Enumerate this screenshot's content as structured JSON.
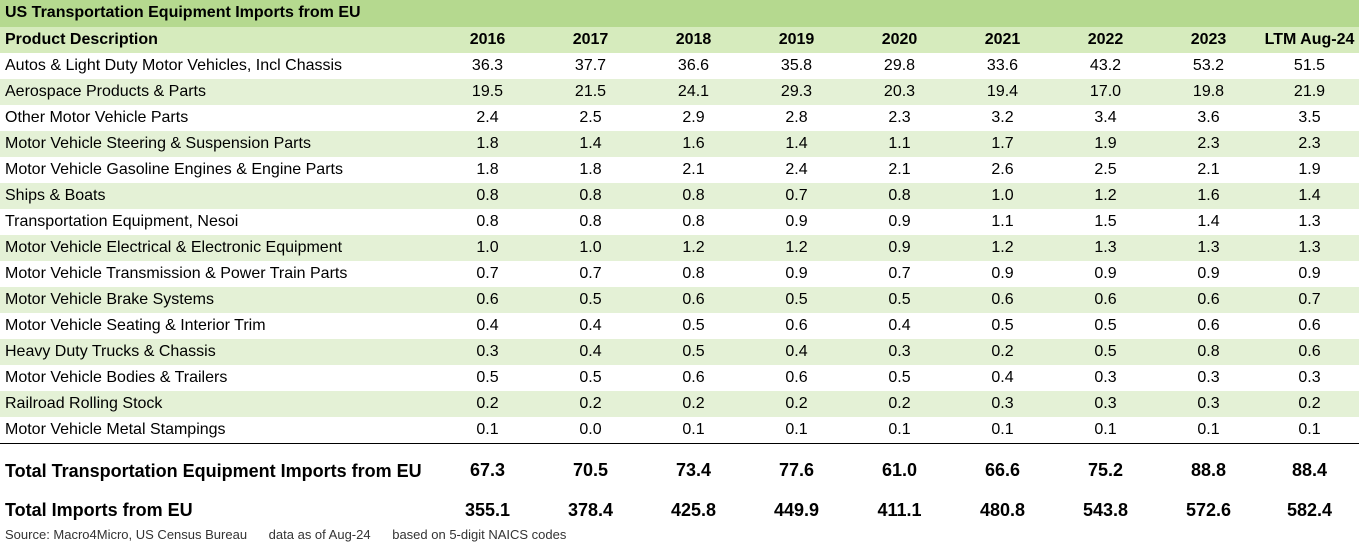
{
  "title": "US Transportation Equipment Imports from EU",
  "columns": [
    "Product Description",
    "2016",
    "2017",
    "2018",
    "2019",
    "2020",
    "2021",
    "2022",
    "2023",
    "LTM Aug-24"
  ],
  "rows": [
    [
      "Autos & Light Duty Motor Vehicles, Incl Chassis",
      "36.3",
      "37.7",
      "36.6",
      "35.8",
      "29.8",
      "33.6",
      "43.2",
      "53.2",
      "51.5"
    ],
    [
      "Aerospace Products & Parts",
      "19.5",
      "21.5",
      "24.1",
      "29.3",
      "20.3",
      "19.4",
      "17.0",
      "19.8",
      "21.9"
    ],
    [
      "Other Motor Vehicle Parts",
      "2.4",
      "2.5",
      "2.9",
      "2.8",
      "2.3",
      "3.2",
      "3.4",
      "3.6",
      "3.5"
    ],
    [
      "Motor Vehicle Steering & Suspension Parts",
      "1.8",
      "1.4",
      "1.6",
      "1.4",
      "1.1",
      "1.7",
      "1.9",
      "2.3",
      "2.3"
    ],
    [
      "Motor Vehicle Gasoline Engines & Engine Parts",
      "1.8",
      "1.8",
      "2.1",
      "2.4",
      "2.1",
      "2.6",
      "2.5",
      "2.1",
      "1.9"
    ],
    [
      "Ships & Boats",
      "0.8",
      "0.8",
      "0.8",
      "0.7",
      "0.8",
      "1.0",
      "1.2",
      "1.6",
      "1.4"
    ],
    [
      "Transportation Equipment, Nesoi",
      "0.8",
      "0.8",
      "0.8",
      "0.9",
      "0.9",
      "1.1",
      "1.5",
      "1.4",
      "1.3"
    ],
    [
      "Motor Vehicle Electrical & Electronic Equipment",
      "1.0",
      "1.0",
      "1.2",
      "1.2",
      "0.9",
      "1.2",
      "1.3",
      "1.3",
      "1.3"
    ],
    [
      "Motor Vehicle Transmission & Power Train Parts",
      "0.7",
      "0.7",
      "0.8",
      "0.9",
      "0.7",
      "0.9",
      "0.9",
      "0.9",
      "0.9"
    ],
    [
      "Motor Vehicle Brake Systems",
      "0.6",
      "0.5",
      "0.6",
      "0.5",
      "0.5",
      "0.6",
      "0.6",
      "0.6",
      "0.7"
    ],
    [
      "Motor Vehicle Seating & Interior Trim",
      "0.4",
      "0.4",
      "0.5",
      "0.6",
      "0.4",
      "0.5",
      "0.5",
      "0.6",
      "0.6"
    ],
    [
      "Heavy Duty Trucks & Chassis",
      "0.3",
      "0.4",
      "0.5",
      "0.4",
      "0.3",
      "0.2",
      "0.5",
      "0.8",
      "0.6"
    ],
    [
      "Motor Vehicle Bodies & Trailers",
      "0.5",
      "0.5",
      "0.6",
      "0.6",
      "0.5",
      "0.4",
      "0.3",
      "0.3",
      "0.3"
    ],
    [
      "Railroad Rolling Stock",
      "0.2",
      "0.2",
      "0.2",
      "0.2",
      "0.2",
      "0.3",
      "0.3",
      "0.3",
      "0.2"
    ],
    [
      "Motor Vehicle Metal Stampings",
      "0.1",
      "0.0",
      "0.1",
      "0.1",
      "0.1",
      "0.1",
      "0.1",
      "0.1",
      "0.1"
    ]
  ],
  "totals": [
    [
      "Total Transportation Equipment Imports from EU",
      "67.3",
      "70.5",
      "73.4",
      "77.6",
      "61.0",
      "66.6",
      "75.2",
      "88.8",
      "88.4"
    ],
    [
      "Total Imports from EU",
      "355.1",
      "378.4",
      "425.8",
      "449.9",
      "411.1",
      "480.8",
      "543.8",
      "572.6",
      "582.4"
    ]
  ],
  "footer": {
    "source": "Source: Macro4Micro, US Census Bureau",
    "as_of": "data as of Aug-24",
    "basis": "based on 5-digit NAICS codes"
  },
  "colors": {
    "title_bg": "#b5d98f",
    "header_bg": "#d6ebbd",
    "alt_row_bg": "#e4f1d6"
  }
}
